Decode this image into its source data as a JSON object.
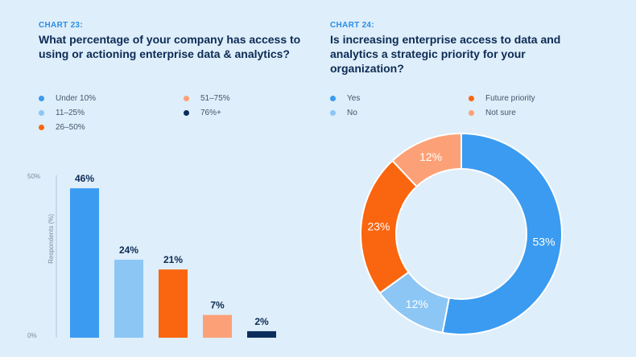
{
  "colors": {
    "under10": "#3a9bf0",
    "r11_25": "#8cc6f5",
    "r26_50": "#fa650f",
    "r51_75": "#fca177",
    "r76plus": "#0b2d5c",
    "yes": "#3a9bf0",
    "no": "#8cc6f5",
    "future": "#fa650f",
    "notsure": "#fca177"
  },
  "chart23": {
    "label": "CHART 23:",
    "title": "What percentage of your company has access to using or actioning enterprise data & analytics?"
  },
  "chart24": {
    "label": "CHART 24:",
    "title": "Is increasing enterprise access to data and analytics a strategic priority for your organization?"
  },
  "chart_data": [
    {
      "type": "bar",
      "title": "What percentage of your company has access to using or actioning enterprise data & analytics?",
      "categories": [
        "Under 10%",
        "11–25%",
        "26–50%",
        "51–75%",
        "76%+"
      ],
      "values": [
        46,
        24,
        21,
        7,
        2
      ],
      "value_labels": [
        "46%",
        "24%",
        "21%",
        "7%",
        "2%"
      ],
      "ylabel": "Respondents (%)",
      "yticks": [
        "0%",
        "50%"
      ],
      "ylim": [
        0,
        50
      ],
      "legend_position": "top"
    },
    {
      "type": "pie",
      "title": "Is increasing enterprise access to data and analytics a strategic priority for your organization?",
      "categories": [
        "Yes",
        "No",
        "Future priority",
        "Not sure"
      ],
      "values": [
        53,
        12,
        23,
        12
      ],
      "value_labels": [
        "53%",
        "12%",
        "23%",
        "12%"
      ],
      "legend_position": "top"
    }
  ]
}
